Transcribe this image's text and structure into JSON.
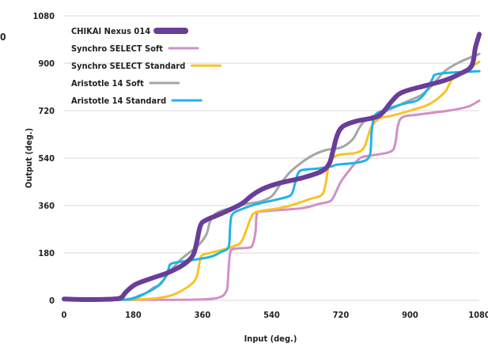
{
  "corner_text": "0",
  "chart_data": {
    "type": "line",
    "title": "",
    "xlabel": "Input (deg.)",
    "ylabel": "Output (deg.)",
    "xlim": [
      0,
      1080
    ],
    "ylim": [
      0,
      1080
    ],
    "xticks": [
      0,
      180,
      360,
      540,
      720,
      900,
      1080
    ],
    "yticks": [
      0,
      180,
      360,
      540,
      720,
      900,
      1080
    ],
    "grid": "horizontal",
    "legend_position": "top-left",
    "series": [
      {
        "name": "CHIKAI Nexus 014",
        "color": "#6a3d9a",
        "points": [
          [
            0,
            5
          ],
          [
            60,
            3
          ],
          [
            130,
            5
          ],
          [
            150,
            12
          ],
          [
            160,
            30
          ],
          [
            185,
            60
          ],
          [
            230,
            85
          ],
          [
            270,
            105
          ],
          [
            310,
            135
          ],
          [
            335,
            170
          ],
          [
            345,
            220
          ],
          [
            355,
            285
          ],
          [
            370,
            305
          ],
          [
            410,
            330
          ],
          [
            460,
            365
          ],
          [
            490,
            400
          ],
          [
            520,
            425
          ],
          [
            560,
            445
          ],
          [
            620,
            465
          ],
          [
            670,
            490
          ],
          [
            690,
            520
          ],
          [
            700,
            570
          ],
          [
            710,
            625
          ],
          [
            725,
            660
          ],
          [
            760,
            680
          ],
          [
            810,
            695
          ],
          [
            830,
            715
          ],
          [
            855,
            760
          ],
          [
            880,
            790
          ],
          [
            940,
            815
          ],
          [
            990,
            835
          ],
          [
            1030,
            860
          ],
          [
            1060,
            890
          ],
          [
            1070,
            960
          ],
          [
            1080,
            1010
          ]
        ]
      },
      {
        "name": "Synchro SELECT Soft",
        "color": "#d38fc6",
        "points": [
          [
            0,
            2
          ],
          [
            250,
            2
          ],
          [
            300,
            2
          ],
          [
            380,
            5
          ],
          [
            410,
            15
          ],
          [
            420,
            30
          ],
          [
            425,
            50
          ],
          [
            428,
            120
          ],
          [
            432,
            180
          ],
          [
            440,
            195
          ],
          [
            480,
            200
          ],
          [
            490,
            210
          ],
          [
            498,
            260
          ],
          [
            502,
            330
          ],
          [
            520,
            338
          ],
          [
            620,
            350
          ],
          [
            660,
            365
          ],
          [
            690,
            375
          ],
          [
            700,
            390
          ],
          [
            710,
            420
          ],
          [
            720,
            450
          ],
          [
            740,
            490
          ],
          [
            770,
            540
          ],
          [
            800,
            550
          ],
          [
            850,
            565
          ],
          [
            862,
            600
          ],
          [
            868,
            660
          ],
          [
            880,
            695
          ],
          [
            920,
            705
          ],
          [
            1000,
            720
          ],
          [
            1050,
            735
          ],
          [
            1080,
            758
          ]
        ]
      },
      {
        "name": "Synchro SELECT Standard",
        "color": "#f7c325",
        "points": [
          [
            0,
            2
          ],
          [
            150,
            2
          ],
          [
            200,
            4
          ],
          [
            250,
            10
          ],
          [
            290,
            25
          ],
          [
            330,
            60
          ],
          [
            345,
            90
          ],
          [
            352,
            140
          ],
          [
            358,
            170
          ],
          [
            380,
            180
          ],
          [
            420,
            195
          ],
          [
            440,
            205
          ],
          [
            460,
            220
          ],
          [
            475,
            270
          ],
          [
            485,
            310
          ],
          [
            500,
            335
          ],
          [
            560,
            350
          ],
          [
            600,
            365
          ],
          [
            640,
            385
          ],
          [
            670,
            400
          ],
          [
            680,
            440
          ],
          [
            690,
            520
          ],
          [
            710,
            550
          ],
          [
            760,
            560
          ],
          [
            780,
            580
          ],
          [
            790,
            620
          ],
          [
            800,
            660
          ],
          [
            820,
            690
          ],
          [
            850,
            700
          ],
          [
            900,
            720
          ],
          [
            950,
            745
          ],
          [
            990,
            790
          ],
          [
            1010,
            840
          ],
          [
            1040,
            870
          ],
          [
            1080,
            905
          ]
        ]
      },
      {
        "name": "Aristotle 14 Soft",
        "color": "#a6a6a6",
        "points": [
          [
            0,
            2
          ],
          [
            150,
            2
          ],
          [
            180,
            5
          ],
          [
            210,
            25
          ],
          [
            235,
            50
          ],
          [
            250,
            60
          ],
          [
            270,
            100
          ],
          [
            300,
            150
          ],
          [
            320,
            175
          ],
          [
            350,
            210
          ],
          [
            370,
            250
          ],
          [
            380,
            300
          ],
          [
            395,
            330
          ],
          [
            420,
            345
          ],
          [
            470,
            365
          ],
          [
            510,
            375
          ],
          [
            540,
            395
          ],
          [
            560,
            435
          ],
          [
            590,
            490
          ],
          [
            640,
            545
          ],
          [
            680,
            570
          ],
          [
            720,
            580
          ],
          [
            750,
            610
          ],
          [
            770,
            660
          ],
          [
            790,
            690
          ],
          [
            840,
            720
          ],
          [
            870,
            740
          ],
          [
            900,
            760
          ],
          [
            930,
            780
          ],
          [
            960,
            820
          ],
          [
            990,
            870
          ],
          [
            1030,
            905
          ],
          [
            1080,
            935
          ]
        ]
      },
      {
        "name": "Aristotle 14 Standard",
        "color": "#1fb4e6",
        "points": [
          [
            0,
            2
          ],
          [
            150,
            2
          ],
          [
            200,
            20
          ],
          [
            240,
            50
          ],
          [
            262,
            85
          ],
          [
            272,
            120
          ],
          [
            280,
            140
          ],
          [
            320,
            150
          ],
          [
            380,
            165
          ],
          [
            410,
            185
          ],
          [
            425,
            195
          ],
          [
            430,
            220
          ],
          [
            432,
            280
          ],
          [
            437,
            325
          ],
          [
            460,
            345
          ],
          [
            500,
            365
          ],
          [
            560,
            385
          ],
          [
            590,
            400
          ],
          [
            600,
            440
          ],
          [
            608,
            480
          ],
          [
            620,
            495
          ],
          [
            660,
            500
          ],
          [
            680,
            505
          ],
          [
            700,
            510
          ],
          [
            710,
            515
          ],
          [
            770,
            525
          ],
          [
            795,
            550
          ],
          [
            800,
            640
          ],
          [
            808,
            700
          ],
          [
            830,
            720
          ],
          [
            880,
            745
          ],
          [
            920,
            760
          ],
          [
            945,
            800
          ],
          [
            958,
            840
          ],
          [
            975,
            860
          ],
          [
            1080,
            870
          ]
        ]
      }
    ]
  }
}
